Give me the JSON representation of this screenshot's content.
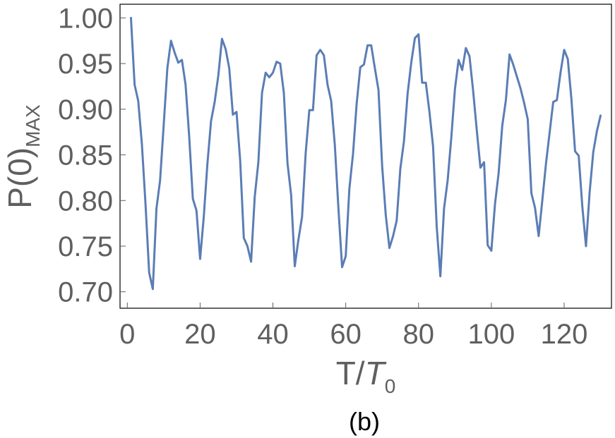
{
  "chart_data": {
    "type": "line",
    "xlabel_main": "T/",
    "xlabel_italic": "T",
    "xlabel_sub": "0",
    "ylabel_main": "P(0)",
    "ylabel_sub": "MAX",
    "panel_label": "(b)",
    "xlim": [
      -2,
      133
    ],
    "ylim": [
      0.682,
      1.015
    ],
    "x_ticks": [
      0,
      20,
      40,
      60,
      80,
      100,
      120
    ],
    "x_tick_labels": [
      "0",
      "20",
      "40",
      "60",
      "80",
      "100",
      "120"
    ],
    "y_ticks": [
      0.7,
      0.75,
      0.8,
      0.85,
      0.9,
      0.95,
      1.0
    ],
    "y_tick_labels": [
      "0.70",
      "0.75",
      "0.80",
      "0.85",
      "0.90",
      "0.95",
      "1.00"
    ],
    "grid": false,
    "colors": {
      "line": "#5b7db5",
      "frame": "#000000",
      "ticks": "#5f5f5f"
    },
    "series": [
      {
        "x": [
          1,
          2,
          3,
          4,
          5,
          6,
          7,
          8,
          9,
          10,
          11,
          12,
          13,
          14,
          15,
          16,
          17,
          18,
          19,
          20,
          21,
          22,
          23,
          24,
          25,
          26,
          27,
          28,
          29,
          30,
          31,
          32,
          33,
          34,
          35,
          36,
          37,
          38,
          39,
          40,
          41,
          42,
          43,
          44,
          45,
          46,
          47,
          48,
          49,
          50,
          51,
          52,
          53,
          54,
          55,
          56,
          57,
          58,
          59,
          60,
          61,
          62,
          63,
          64,
          65,
          66,
          67,
          68,
          69,
          70,
          71,
          72,
          73,
          74,
          75,
          76,
          77,
          78,
          79,
          80,
          81,
          82,
          83,
          84,
          85,
          86,
          87,
          88,
          89,
          90,
          91,
          92,
          93,
          94,
          95,
          96,
          97,
          98,
          99,
          100,
          101,
          102,
          103,
          104,
          105,
          106,
          107,
          108,
          109,
          110,
          111,
          112,
          113,
          114,
          115,
          116,
          117,
          118,
          119,
          120,
          121,
          122,
          123,
          124,
          125,
          126,
          127,
          128,
          129,
          130
        ],
        "values": [
          1.0,
          0.927,
          0.909,
          0.862,
          0.796,
          0.721,
          0.703,
          0.791,
          0.822,
          0.883,
          0.945,
          0.975,
          0.962,
          0.951,
          0.954,
          0.927,
          0.87,
          0.802,
          0.789,
          0.736,
          0.782,
          0.84,
          0.887,
          0.908,
          0.937,
          0.977,
          0.966,
          0.945,
          0.894,
          0.897,
          0.844,
          0.759,
          0.75,
          0.733,
          0.804,
          0.842,
          0.918,
          0.94,
          0.935,
          0.94,
          0.952,
          0.95,
          0.918,
          0.841,
          0.806,
          0.728,
          0.757,
          0.782,
          0.852,
          0.899,
          0.899,
          0.959,
          0.965,
          0.959,
          0.927,
          0.909,
          0.861,
          0.791,
          0.727,
          0.739,
          0.813,
          0.851,
          0.906,
          0.946,
          0.949,
          0.97,
          0.97,
          0.945,
          0.921,
          0.838,
          0.784,
          0.748,
          0.761,
          0.778,
          0.835,
          0.865,
          0.917,
          0.951,
          0.978,
          0.982,
          0.929,
          0.929,
          0.897,
          0.859,
          0.771,
          0.717,
          0.791,
          0.822,
          0.869,
          0.922,
          0.954,
          0.943,
          0.967,
          0.958,
          0.92,
          0.877,
          0.836,
          0.842,
          0.751,
          0.745,
          0.796,
          0.83,
          0.882,
          0.91,
          0.96,
          0.949,
          0.936,
          0.923,
          0.907,
          0.889,
          0.808,
          0.792,
          0.761,
          0.8,
          0.84,
          0.874,
          0.908,
          0.91,
          0.94,
          0.965,
          0.955,
          0.911,
          0.854,
          0.849,
          0.793,
          0.75,
          0.809,
          0.853,
          0.876,
          0.893
        ]
      }
    ]
  }
}
